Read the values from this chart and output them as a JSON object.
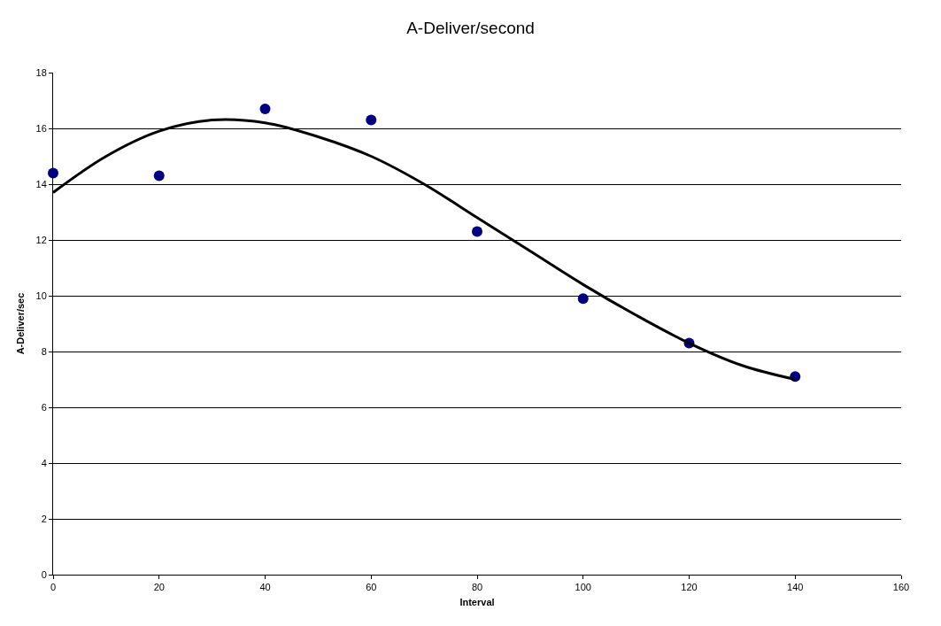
{
  "chart_data": {
    "type": "scatter",
    "title": "A-Deliver/second",
    "xlabel": "Interval",
    "ylabel": "A-Deliver/sec",
    "x": [
      0,
      20,
      40,
      60,
      80,
      100,
      120,
      140
    ],
    "series": [
      {
        "color": "#000080",
        "values": [
          14.4,
          14.3,
          16.7,
          16.3,
          12.3,
          9.9,
          8.3,
          7.1
        ],
        "marker": "circle"
      },
      {
        "type": "line",
        "color": "#000000",
        "line_style": "solid",
        "x": [
          0,
          10,
          20,
          30,
          40,
          50,
          60,
          70,
          80,
          90,
          100,
          110,
          120,
          130,
          140
        ],
        "values": [
          13.7,
          15.0,
          15.9,
          16.3,
          16.2,
          15.7,
          15.0,
          14.0,
          12.8,
          11.6,
          10.4,
          9.3,
          8.3,
          7.5,
          7.0
        ]
      }
    ],
    "xlim": [
      0,
      160
    ],
    "xticks": [
      0,
      20,
      40,
      60,
      80,
      100,
      120,
      140,
      160
    ],
    "ylim": [
      0,
      18
    ],
    "yticks": [
      0,
      2,
      4,
      6,
      8,
      10,
      12,
      14,
      16,
      18
    ],
    "grid": "y"
  }
}
